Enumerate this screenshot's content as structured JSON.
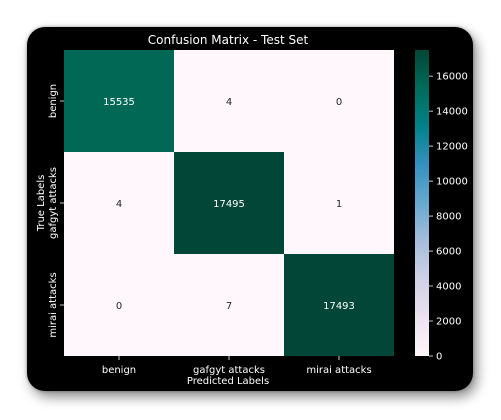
{
  "chart_data": {
    "type": "heatmap",
    "title": "Confusion Matrix - Test Set",
    "xlabel": "Predicted Labels",
    "ylabel": "True Labels",
    "x_categories": [
      "benign",
      "gafgyt attacks",
      "mirai attacks"
    ],
    "y_categories": [
      "benign",
      "gafgyt attacks",
      "mirai attacks"
    ],
    "values": [
      [
        15535,
        4,
        0
      ],
      [
        4,
        17495,
        1
      ],
      [
        0,
        7,
        17493
      ]
    ],
    "colorbar": {
      "min": 0,
      "max": 17495,
      "ticks": [
        0,
        2000,
        4000,
        6000,
        8000,
        10000,
        12000,
        14000,
        16000
      ],
      "colormap": "PuBuGn"
    },
    "colors": {
      "background": "#000000",
      "low": "#fff7fb",
      "high": "#014636"
    }
  }
}
